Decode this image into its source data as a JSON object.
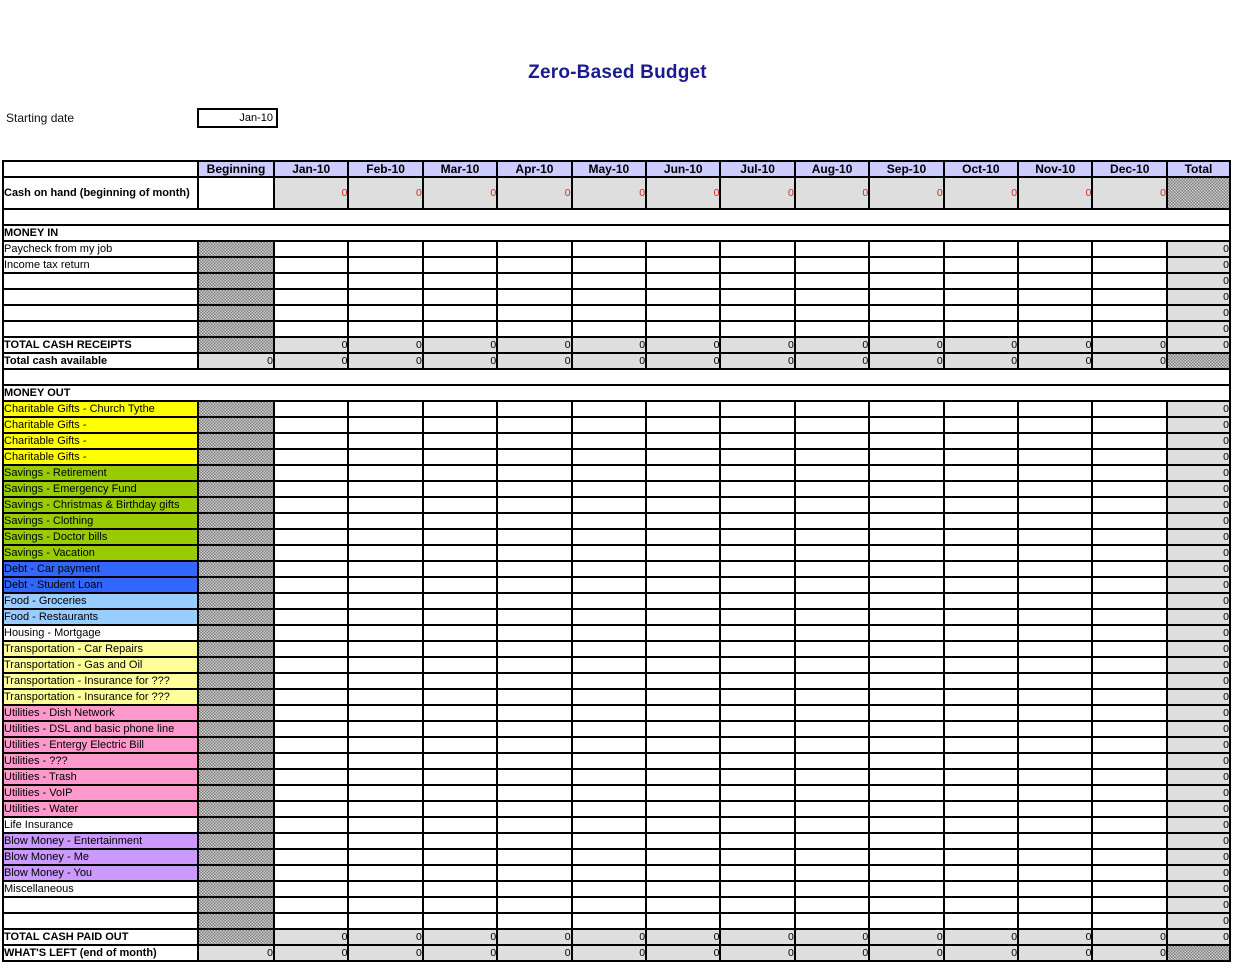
{
  "title": "Zero-Based Budget",
  "starting_date": {
    "label": "Starting date",
    "value": "Jan-10"
  },
  "columns": [
    "Beginning",
    "Jan-10",
    "Feb-10",
    "Mar-10",
    "Apr-10",
    "May-10",
    "Jun-10",
    "Jul-10",
    "Aug-10",
    "Sep-10",
    "Oct-10",
    "Nov-10",
    "Dec-10",
    "Total"
  ],
  "zero": "0",
  "rows": [
    {
      "kind": "cash",
      "label": "Cash on hand (beginning of month)",
      "month_value": "0",
      "beginning": "blank",
      "total": "hatch"
    },
    {
      "kind": "spacer"
    },
    {
      "kind": "section",
      "label": "MONEY IN"
    },
    {
      "kind": "item",
      "label": "Paycheck from my job",
      "bg": "none"
    },
    {
      "kind": "item",
      "label": "Income tax return",
      "bg": "none"
    },
    {
      "kind": "item",
      "label": "",
      "bg": "none"
    },
    {
      "kind": "item",
      "label": "",
      "bg": "none"
    },
    {
      "kind": "item",
      "label": "",
      "bg": "none"
    },
    {
      "kind": "item",
      "label": "",
      "bg": "none"
    },
    {
      "kind": "totalrow",
      "label": "TOTAL CASH RECEIPTS",
      "beginning": "hatch",
      "total": "zero"
    },
    {
      "kind": "totalrow",
      "label": "Total cash available",
      "beginning": "zero",
      "total": "hatch"
    },
    {
      "kind": "spacer"
    },
    {
      "kind": "section",
      "label": "MONEY OUT"
    },
    {
      "kind": "item",
      "label": "Charitable Gifts - Church Tythe",
      "bg": "yellow"
    },
    {
      "kind": "item",
      "label": "Charitable Gifts -",
      "bg": "yellow"
    },
    {
      "kind": "item",
      "label": "Charitable Gifts -",
      "bg": "yellow"
    },
    {
      "kind": "item",
      "label": "Charitable Gifts -",
      "bg": "yellow"
    },
    {
      "kind": "item",
      "label": "Savings - Retirement",
      "bg": "green"
    },
    {
      "kind": "item",
      "label": "Savings - Emergency Fund",
      "bg": "green"
    },
    {
      "kind": "item",
      "label": "Savings - Christmas & Birthday gifts",
      "bg": "green"
    },
    {
      "kind": "item",
      "label": "Savings - Clothing",
      "bg": "green"
    },
    {
      "kind": "item",
      "label": "Savings - Doctor bills",
      "bg": "green"
    },
    {
      "kind": "item",
      "label": "Savings - Vacation",
      "bg": "green"
    },
    {
      "kind": "item",
      "label": "Debt - Car payment",
      "bg": "blue"
    },
    {
      "kind": "item",
      "label": "Debt - Student Loan",
      "bg": "blue"
    },
    {
      "kind": "item",
      "label": "Food - Groceries",
      "bg": "lightblue"
    },
    {
      "kind": "item",
      "label": "Food - Restaurants",
      "bg": "lightblue"
    },
    {
      "kind": "item",
      "label": "Housing - Mortgage",
      "bg": "none"
    },
    {
      "kind": "item",
      "label": "Transportation - Car Repairs",
      "bg": "paleyellow"
    },
    {
      "kind": "item",
      "label": "Transportation - Gas and Oil",
      "bg": "paleyellow"
    },
    {
      "kind": "item",
      "label": "Transportation - Insurance for ???",
      "bg": "paleyellow"
    },
    {
      "kind": "item",
      "label": "Transportation - Insurance for ???",
      "bg": "paleyellow"
    },
    {
      "kind": "item",
      "label": "Utilities - Dish Network",
      "bg": "pink"
    },
    {
      "kind": "item",
      "label": "Utilities - DSL and basic phone line",
      "bg": "pink"
    },
    {
      "kind": "item",
      "label": "Utilities - Entergy Electric Bill",
      "bg": "pink"
    },
    {
      "kind": "item",
      "label": "Utilities - ???",
      "bg": "pink"
    },
    {
      "kind": "item",
      "label": "Utilities - Trash",
      "bg": "pink"
    },
    {
      "kind": "item",
      "label": "Utilities - VoIP",
      "bg": "pink"
    },
    {
      "kind": "item",
      "label": "Utilities - Water",
      "bg": "pink"
    },
    {
      "kind": "item",
      "label": "Life Insurance",
      "bg": "none"
    },
    {
      "kind": "item",
      "label": "Blow Money - Entertainment",
      "bg": "purple"
    },
    {
      "kind": "item",
      "label": "Blow Money - Me",
      "bg": "purple"
    },
    {
      "kind": "item",
      "label": "Blow Money - You",
      "bg": "purple"
    },
    {
      "kind": "item",
      "label": "Miscellaneous",
      "bg": "none"
    },
    {
      "kind": "item",
      "label": "",
      "bg": "none"
    },
    {
      "kind": "item",
      "label": "",
      "bg": "none"
    },
    {
      "kind": "totalrow",
      "label": "TOTAL CASH PAID OUT",
      "beginning": "hatch",
      "total": "zero"
    },
    {
      "kind": "totalrow",
      "label": "WHAT'S LEFT (end of month)",
      "beginning": "zero",
      "total": "hatch"
    }
  ],
  "colors": {
    "header_bg": "#ccccff",
    "computed_bg": "#dedede",
    "title_color": "#1b1b8f",
    "cash_zero_color": "#d92525",
    "yellow": "#ffff00",
    "green": "#99cc00",
    "blue": "#3366ff",
    "lightblue": "#99ccff",
    "paleyellow": "#ffff99",
    "pink": "#ff99cc",
    "purple": "#cc99ff",
    "none": "#ffffff"
  }
}
